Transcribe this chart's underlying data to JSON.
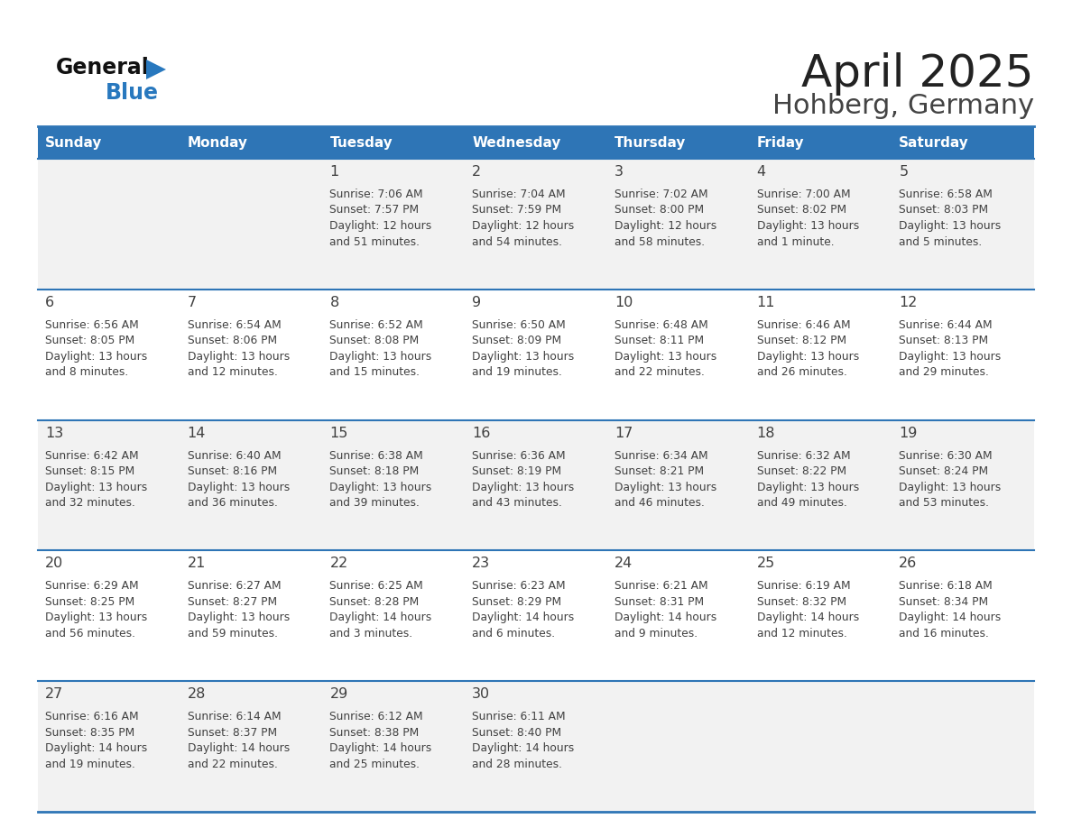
{
  "title": "April 2025",
  "subtitle": "Hohberg, Germany",
  "days_of_week": [
    "Sunday",
    "Monday",
    "Tuesday",
    "Wednesday",
    "Thursday",
    "Friday",
    "Saturday"
  ],
  "header_bg": "#2E75B6",
  "header_text_color": "#FFFFFF",
  "row_bg_odd": "#F2F2F2",
  "row_bg_even": "#FFFFFF",
  "cell_text_color": "#404040",
  "date_number_color": "#404040",
  "divider_color": "#2E75B6",
  "title_color": "#222222",
  "subtitle_color": "#444444",
  "logo_general_color": "#111111",
  "logo_blue_color": "#2878BE",
  "weeks": [
    {
      "days": [
        {
          "date": "",
          "sunrise": "",
          "sunset": "",
          "daylight": ""
        },
        {
          "date": "",
          "sunrise": "",
          "sunset": "",
          "daylight": ""
        },
        {
          "date": "1",
          "sunrise": "Sunrise: 7:06 AM",
          "sunset": "Sunset: 7:57 PM",
          "daylight": "Daylight: 12 hours\nand 51 minutes."
        },
        {
          "date": "2",
          "sunrise": "Sunrise: 7:04 AM",
          "sunset": "Sunset: 7:59 PM",
          "daylight": "Daylight: 12 hours\nand 54 minutes."
        },
        {
          "date": "3",
          "sunrise": "Sunrise: 7:02 AM",
          "sunset": "Sunset: 8:00 PM",
          "daylight": "Daylight: 12 hours\nand 58 minutes."
        },
        {
          "date": "4",
          "sunrise": "Sunrise: 7:00 AM",
          "sunset": "Sunset: 8:02 PM",
          "daylight": "Daylight: 13 hours\nand 1 minute."
        },
        {
          "date": "5",
          "sunrise": "Sunrise: 6:58 AM",
          "sunset": "Sunset: 8:03 PM",
          "daylight": "Daylight: 13 hours\nand 5 minutes."
        }
      ]
    },
    {
      "days": [
        {
          "date": "6",
          "sunrise": "Sunrise: 6:56 AM",
          "sunset": "Sunset: 8:05 PM",
          "daylight": "Daylight: 13 hours\nand 8 minutes."
        },
        {
          "date": "7",
          "sunrise": "Sunrise: 6:54 AM",
          "sunset": "Sunset: 8:06 PM",
          "daylight": "Daylight: 13 hours\nand 12 minutes."
        },
        {
          "date": "8",
          "sunrise": "Sunrise: 6:52 AM",
          "sunset": "Sunset: 8:08 PM",
          "daylight": "Daylight: 13 hours\nand 15 minutes."
        },
        {
          "date": "9",
          "sunrise": "Sunrise: 6:50 AM",
          "sunset": "Sunset: 8:09 PM",
          "daylight": "Daylight: 13 hours\nand 19 minutes."
        },
        {
          "date": "10",
          "sunrise": "Sunrise: 6:48 AM",
          "sunset": "Sunset: 8:11 PM",
          "daylight": "Daylight: 13 hours\nand 22 minutes."
        },
        {
          "date": "11",
          "sunrise": "Sunrise: 6:46 AM",
          "sunset": "Sunset: 8:12 PM",
          "daylight": "Daylight: 13 hours\nand 26 minutes."
        },
        {
          "date": "12",
          "sunrise": "Sunrise: 6:44 AM",
          "sunset": "Sunset: 8:13 PM",
          "daylight": "Daylight: 13 hours\nand 29 minutes."
        }
      ]
    },
    {
      "days": [
        {
          "date": "13",
          "sunrise": "Sunrise: 6:42 AM",
          "sunset": "Sunset: 8:15 PM",
          "daylight": "Daylight: 13 hours\nand 32 minutes."
        },
        {
          "date": "14",
          "sunrise": "Sunrise: 6:40 AM",
          "sunset": "Sunset: 8:16 PM",
          "daylight": "Daylight: 13 hours\nand 36 minutes."
        },
        {
          "date": "15",
          "sunrise": "Sunrise: 6:38 AM",
          "sunset": "Sunset: 8:18 PM",
          "daylight": "Daylight: 13 hours\nand 39 minutes."
        },
        {
          "date": "16",
          "sunrise": "Sunrise: 6:36 AM",
          "sunset": "Sunset: 8:19 PM",
          "daylight": "Daylight: 13 hours\nand 43 minutes."
        },
        {
          "date": "17",
          "sunrise": "Sunrise: 6:34 AM",
          "sunset": "Sunset: 8:21 PM",
          "daylight": "Daylight: 13 hours\nand 46 minutes."
        },
        {
          "date": "18",
          "sunrise": "Sunrise: 6:32 AM",
          "sunset": "Sunset: 8:22 PM",
          "daylight": "Daylight: 13 hours\nand 49 minutes."
        },
        {
          "date": "19",
          "sunrise": "Sunrise: 6:30 AM",
          "sunset": "Sunset: 8:24 PM",
          "daylight": "Daylight: 13 hours\nand 53 minutes."
        }
      ]
    },
    {
      "days": [
        {
          "date": "20",
          "sunrise": "Sunrise: 6:29 AM",
          "sunset": "Sunset: 8:25 PM",
          "daylight": "Daylight: 13 hours\nand 56 minutes."
        },
        {
          "date": "21",
          "sunrise": "Sunrise: 6:27 AM",
          "sunset": "Sunset: 8:27 PM",
          "daylight": "Daylight: 13 hours\nand 59 minutes."
        },
        {
          "date": "22",
          "sunrise": "Sunrise: 6:25 AM",
          "sunset": "Sunset: 8:28 PM",
          "daylight": "Daylight: 14 hours\nand 3 minutes."
        },
        {
          "date": "23",
          "sunrise": "Sunrise: 6:23 AM",
          "sunset": "Sunset: 8:29 PM",
          "daylight": "Daylight: 14 hours\nand 6 minutes."
        },
        {
          "date": "24",
          "sunrise": "Sunrise: 6:21 AM",
          "sunset": "Sunset: 8:31 PM",
          "daylight": "Daylight: 14 hours\nand 9 minutes."
        },
        {
          "date": "25",
          "sunrise": "Sunrise: 6:19 AM",
          "sunset": "Sunset: 8:32 PM",
          "daylight": "Daylight: 14 hours\nand 12 minutes."
        },
        {
          "date": "26",
          "sunrise": "Sunrise: 6:18 AM",
          "sunset": "Sunset: 8:34 PM",
          "daylight": "Daylight: 14 hours\nand 16 minutes."
        }
      ]
    },
    {
      "days": [
        {
          "date": "27",
          "sunrise": "Sunrise: 6:16 AM",
          "sunset": "Sunset: 8:35 PM",
          "daylight": "Daylight: 14 hours\nand 19 minutes."
        },
        {
          "date": "28",
          "sunrise": "Sunrise: 6:14 AM",
          "sunset": "Sunset: 8:37 PM",
          "daylight": "Daylight: 14 hours\nand 22 minutes."
        },
        {
          "date": "29",
          "sunrise": "Sunrise: 6:12 AM",
          "sunset": "Sunset: 8:38 PM",
          "daylight": "Daylight: 14 hours\nand 25 minutes."
        },
        {
          "date": "30",
          "sunrise": "Sunrise: 6:11 AM",
          "sunset": "Sunset: 8:40 PM",
          "daylight": "Daylight: 14 hours\nand 28 minutes."
        },
        {
          "date": "",
          "sunrise": "",
          "sunset": "",
          "daylight": ""
        },
        {
          "date": "",
          "sunrise": "",
          "sunset": "",
          "daylight": ""
        },
        {
          "date": "",
          "sunrise": "",
          "sunset": "",
          "daylight": ""
        }
      ]
    }
  ]
}
